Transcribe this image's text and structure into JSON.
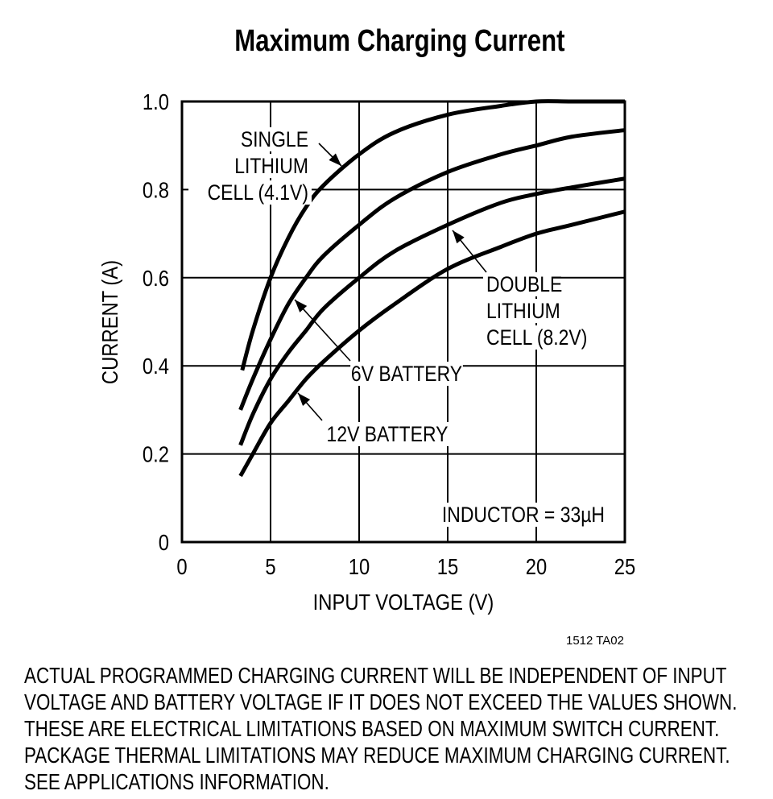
{
  "title": "Maximum Charging Current",
  "figure_id": "1512 TA02",
  "note_lines": [
    "ACTUAL PROGRAMMED CHARGING CURRENT WILL BE INDEPENDENT OF INPUT",
    "VOLTAGE AND BATTERY VOLTAGE IF IT DOES NOT EXCEED THE VALUES SHOWN.",
    "THESE ARE ELECTRICAL LIMITATIONS BASED ON MAXIMUM SWITCH CURRENT.",
    "PACKAGE THERMAL LIMITATIONS MAY REDUCE MAXIMUM CHARGING CURRENT.",
    "SEE APPLICATIONS INFORMATION."
  ],
  "chart_data": {
    "type": "line",
    "title": "Maximum Charging Current",
    "xlabel": "INPUT VOLTAGE (V)",
    "ylabel": "CURRENT (A)",
    "xlim": [
      0,
      25
    ],
    "ylim": [
      0,
      1.0
    ],
    "xticks": [
      "0",
      "5",
      "10",
      "15",
      "20",
      "25"
    ],
    "yticks": [
      "0",
      "0.2",
      "0.4",
      "0.6",
      "0.8",
      "1.0"
    ],
    "grid": true,
    "annotation": "INDUCTOR = 33µH",
    "series": [
      {
        "name": "SINGLE LITHIUM CELL (4.1V)",
        "label_lines": [
          "SINGLE",
          "LITHIUM",
          "CELL (4.1V)"
        ],
        "x": [
          3.4,
          4,
          5,
          6,
          7,
          8,
          10,
          12,
          15,
          18,
          20,
          22,
          25
        ],
        "y": [
          0.39,
          0.48,
          0.6,
          0.69,
          0.76,
          0.81,
          0.88,
          0.93,
          0.97,
          0.99,
          1.0,
          1.0,
          1.0
        ]
      },
      {
        "name": "6V BATTERY",
        "label_lines": [
          "6V BATTERY"
        ],
        "x": [
          3.3,
          4,
          5,
          6,
          7,
          8,
          10,
          12,
          15,
          18,
          20,
          22,
          25
        ],
        "y": [
          0.3,
          0.37,
          0.46,
          0.54,
          0.6,
          0.65,
          0.72,
          0.78,
          0.84,
          0.88,
          0.9,
          0.92,
          0.935
        ]
      },
      {
        "name": "DOUBLE LITHIUM CELL (8.2V)",
        "label_lines": [
          "DOUBLE",
          "LITHIUM",
          "CELL (8.2V)"
        ],
        "x": [
          3.3,
          4,
          5,
          6,
          7,
          8,
          10,
          12,
          15,
          18,
          20,
          22,
          25
        ],
        "y": [
          0.22,
          0.29,
          0.37,
          0.43,
          0.48,
          0.53,
          0.6,
          0.66,
          0.72,
          0.77,
          0.79,
          0.805,
          0.825
        ]
      },
      {
        "name": "12V BATTERY",
        "label_lines": [
          "12V BATTERY"
        ],
        "x": [
          3.3,
          4,
          5,
          6,
          7,
          8,
          10,
          12,
          15,
          18,
          20,
          22,
          25
        ],
        "y": [
          0.15,
          0.2,
          0.27,
          0.32,
          0.37,
          0.41,
          0.48,
          0.54,
          0.62,
          0.67,
          0.7,
          0.72,
          0.75
        ]
      }
    ]
  }
}
